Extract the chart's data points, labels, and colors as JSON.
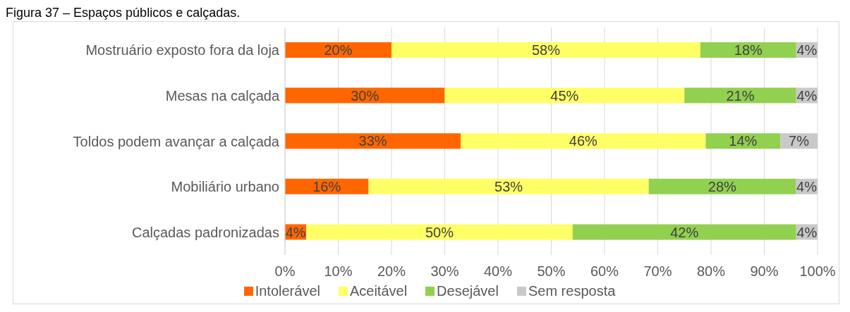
{
  "chart_data": {
    "type": "bar",
    "title": "Figura 37 – Espaços públicos e calçadas.",
    "orientation": "horizontal",
    "stacked": true,
    "categories": [
      "Mostruário exposto fora da loja",
      "Mesas na calçada",
      "Toldos podem avançar a calçada",
      "Mobiliário urbano",
      "Calçadas padronizadas"
    ],
    "series": [
      {
        "name": "Intolerável",
        "color": "#ff6600",
        "values": [
          20,
          30,
          33,
          15.7,
          4
        ],
        "value_labels": [
          "20%",
          "30%",
          "33%",
          "16%",
          "4%"
        ]
      },
      {
        "name": "Aceitável",
        "color": "#ffff66",
        "values": [
          58,
          45,
          46,
          52.6,
          50
        ],
        "value_labels": [
          "58%",
          "45%",
          "46%",
          "53%",
          "50%"
        ]
      },
      {
        "name": "Desejável",
        "color": "#92d050",
        "values": [
          18,
          21,
          14,
          27.6,
          42
        ],
        "value_labels": [
          "18%",
          "21%",
          "14%",
          "28%",
          "42%"
        ]
      },
      {
        "name": "Sem resposta",
        "color": "#c9c9c9",
        "values": [
          4,
          4,
          7,
          4.1,
          4
        ],
        "value_labels": [
          "4%",
          "4%",
          "7%",
          "4%",
          "4%"
        ]
      }
    ],
    "xlim": [
      0,
      100
    ],
    "xticks": [
      {
        "value": 0,
        "label": "0%"
      },
      {
        "value": 10,
        "label": "10%"
      },
      {
        "value": 20,
        "label": "20%"
      },
      {
        "value": 30,
        "label": "30%"
      },
      {
        "value": 40,
        "label": "40%"
      },
      {
        "value": 50,
        "label": "50%"
      },
      {
        "value": 60,
        "label": "60%"
      },
      {
        "value": 70,
        "label": "70%"
      },
      {
        "value": 80,
        "label": "80%"
      },
      {
        "value": 90,
        "label": "90%"
      },
      {
        "value": 100,
        "label": "100%"
      }
    ],
    "grid": "x",
    "legend": "bottom"
  }
}
